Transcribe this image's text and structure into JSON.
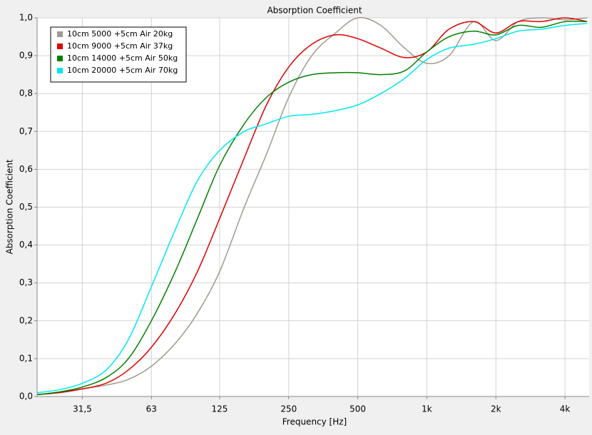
{
  "chart_data": {
    "type": "line",
    "title": "Absorption Coefficient",
    "x_label": "Frequency [Hz]",
    "y_label": "Absorption Coefficient",
    "log_x": true,
    "grid": true,
    "legend": "top-left",
    "x": [
      20,
      25,
      31.5,
      40,
      50,
      63,
      80,
      100,
      125,
      160,
      200,
      250,
      315,
      400,
      500,
      630,
      800,
      1000,
      1250,
      1600,
      2000,
      2500,
      3150,
      4000,
      5000
    ],
    "xlim": [
      20,
      5100
    ],
    "xticks": [
      {
        "value": 31.5,
        "label": "31,5"
      },
      63,
      125,
      250,
      500,
      {
        "value": 1000,
        "label": "1k"
      },
      {
        "value": 2000,
        "label": "2k"
      },
      {
        "value": 4000,
        "label": "4k"
      }
    ],
    "ylim": [
      0,
      1
    ],
    "yticks": [
      {
        "value": 0,
        "label": "0,0"
      },
      {
        "value": 0.1,
        "label": "0,1"
      },
      {
        "value": 0.2,
        "label": "0,2"
      },
      {
        "value": 0.3,
        "label": "0,3"
      },
      {
        "value": 0.4,
        "label": "0,4"
      },
      {
        "value": 0.5,
        "label": "0,5"
      },
      {
        "value": 0.6,
        "label": "0,6"
      },
      {
        "value": 0.7,
        "label": "0,7"
      },
      {
        "value": 0.8,
        "label": "0,8"
      },
      {
        "value": 0.9,
        "label": "0,9"
      },
      {
        "value": 1,
        "label": "1,0"
      }
    ],
    "series": [
      {
        "name": "10cm 5000 +5cm Air 20kg",
        "color": "#a09a8f",
        "values": [
          0.005,
          0.01,
          0.02,
          0.03,
          0.045,
          0.08,
          0.14,
          0.22,
          0.33,
          0.5,
          0.64,
          0.79,
          0.9,
          0.96,
          1.0,
          0.98,
          0.92,
          0.88,
          0.9,
          0.99,
          0.94,
          0.99,
          1.0,
          0.995,
          1.0
        ]
      },
      {
        "name": "10cm 9000 +5cm Air 37kg",
        "color": "#e00000",
        "values": [
          0.005,
          0.01,
          0.02,
          0.035,
          0.07,
          0.13,
          0.22,
          0.33,
          0.47,
          0.63,
          0.77,
          0.87,
          0.93,
          0.955,
          0.945,
          0.92,
          0.895,
          0.91,
          0.97,
          0.99,
          0.96,
          0.99,
          0.99,
          1.0,
          0.99
        ]
      },
      {
        "name": "10cm 14000 +5cm Air 50kg",
        "color": "#008000",
        "values": [
          0.005,
          0.012,
          0.025,
          0.05,
          0.1,
          0.2,
          0.33,
          0.47,
          0.61,
          0.72,
          0.79,
          0.83,
          0.85,
          0.855,
          0.855,
          0.85,
          0.86,
          0.91,
          0.95,
          0.965,
          0.955,
          0.98,
          0.975,
          0.99,
          0.99
        ]
      },
      {
        "name": "10cm 20000 +5cm Air 70kg",
        "color": "#00e8f0",
        "values": [
          0.01,
          0.018,
          0.035,
          0.07,
          0.15,
          0.29,
          0.44,
          0.57,
          0.65,
          0.7,
          0.72,
          0.74,
          0.745,
          0.755,
          0.77,
          0.8,
          0.84,
          0.89,
          0.92,
          0.93,
          0.945,
          0.965,
          0.97,
          0.98,
          0.985
        ]
      }
    ]
  }
}
